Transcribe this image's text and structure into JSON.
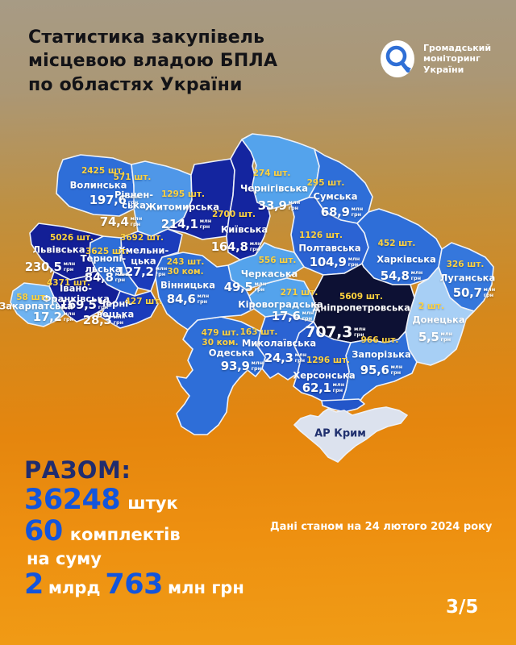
{
  "header": {
    "title_lines": [
      "Статистика закупівель",
      "місцевою владою БПЛА",
      "по областях України"
    ],
    "logo_lines": [
      "Громадський",
      "моніторинг",
      "України"
    ],
    "logo_icon": "magnifier-icon",
    "logo_accent": "#2f6fd6"
  },
  "map": {
    "unit": "млн\nгрн",
    "crimea_label": "АР Крим",
    "crimea_color": "#dce2ee",
    "regions": [
      {
        "id": "volynska",
        "name": "Волинська",
        "count": "2425 шт.",
        "amount": "197,6",
        "units": 2425,
        "mln_uah": 197.6,
        "color": "#2e6ed8",
        "pos": {
          "count": [
            128,
            212
          ],
          "name": [
            122,
            230
          ],
          "amount": [
            142,
            248
          ]
        }
      },
      {
        "id": "rivnenska",
        "name": "Рівнен-\nська",
        "count": "571 шт.",
        "amount": "74,4",
        "units": 571,
        "mln_uah": 74.4,
        "color": "#4f97e8",
        "pos": {
          "count": [
            164,
            220
          ],
          "name": [
            166,
            248
          ],
          "amount": [
            150,
            275
          ]
        }
      },
      {
        "id": "zhytomyrska",
        "name": "Житомирська",
        "count": "1295 шт.",
        "amount": "214,1",
        "units": 1295,
        "mln_uah": 214.1,
        "color": "#14259f",
        "pos": {
          "count": [
            227,
            241
          ],
          "name": [
            226,
            257
          ],
          "amount": [
            231,
            278
          ]
        }
      },
      {
        "id": "kyivska",
        "name": "Київська",
        "count": "2700 шт.",
        "amount": "164,8",
        "units": 2700,
        "mln_uah": 164.8,
        "color": "#14259f",
        "pos": {
          "count": [
            290,
            266
          ],
          "name": [
            303,
            285
          ],
          "amount": [
            293,
            306
          ]
        }
      },
      {
        "id": "chernihivska",
        "name": "Чернігівська",
        "count": "274 шт.",
        "amount": "33,9",
        "units": 274,
        "mln_uah": 33.9,
        "color": "#54a3ec",
        "pos": {
          "count": [
            337,
            215
          ],
          "name": [
            340,
            234
          ],
          "amount": [
            346,
            255
          ]
        }
      },
      {
        "id": "sumska",
        "name": "Сумська",
        "count": "295 шт.",
        "amount": "68,9",
        "units": 295,
        "mln_uah": 68.9,
        "color": "#2e6ed8",
        "pos": {
          "count": [
            404,
            227
          ],
          "name": [
            416,
            244
          ],
          "amount": [
            424,
            263
          ]
        }
      },
      {
        "id": "poltavska",
        "name": "Полтавська",
        "count": "1126 шт.",
        "amount": "104,9",
        "units": 1126,
        "mln_uah": 104.9,
        "color": "#2b63d3",
        "pos": {
          "count": [
            398,
            292
          ],
          "name": [
            409,
            308
          ],
          "amount": [
            415,
            325
          ]
        }
      },
      {
        "id": "kharkivska",
        "name": "Харківська",
        "count": "452 шт.",
        "amount": "54,8",
        "units": 452,
        "mln_uah": 54.8,
        "color": "#2e6ed8",
        "pos": {
          "count": [
            492,
            302
          ],
          "name": [
            504,
            322
          ],
          "amount": [
            498,
            342
          ]
        }
      },
      {
        "id": "luhanska",
        "name": "Луганська",
        "count": "326 шт.",
        "amount": "50,7",
        "units": 326,
        "mln_uah": 50.7,
        "color": "#3577dc",
        "pos": {
          "count": [
            577,
            328
          ],
          "name": [
            580,
            345
          ],
          "amount": [
            588,
            363
          ]
        }
      },
      {
        "id": "donetska",
        "name": "Донецька",
        "count": "2 шт.",
        "amount": "5,5",
        "units": 2,
        "mln_uah": 5.5,
        "color": "#a7cff5",
        "pos": {
          "count": [
            535,
            380
          ],
          "name": [
            544,
            397
          ],
          "amount": [
            540,
            418
          ]
        }
      },
      {
        "id": "dnipropetrovska",
        "name": "Дніпропетровська",
        "count": "5609 шт.",
        "amount": "707,3",
        "units": 5609,
        "mln_uah": 707.3,
        "color": "#0d1134",
        "big": true,
        "pos": {
          "count": [
            448,
            368
          ],
          "name": [
            448,
            382
          ],
          "amount": [
            416,
            412
          ]
        }
      },
      {
        "id": "zaporizka",
        "name": "Запорізька",
        "count": "966 шт.",
        "amount": "95,6",
        "units": 966,
        "mln_uah": 95.6,
        "color": "#2e6ed8",
        "pos": {
          "count": [
            471,
            422
          ],
          "name": [
            473,
            440
          ],
          "amount": [
            473,
            459
          ]
        }
      },
      {
        "id": "khersonska",
        "name": "Херсонська",
        "count": "1296 шт.",
        "amount": "62,1",
        "units": 1296,
        "mln_uah": 62.1,
        "color": "#2356c9",
        "pos": {
          "count": [
            407,
            447
          ],
          "name": [
            402,
            466
          ],
          "amount": [
            401,
            481
          ]
        }
      },
      {
        "id": "mykolaivska",
        "name": "Миколаївська",
        "count": "163 шт.",
        "amount": "24,3",
        "units": 163,
        "mln_uah": 24.3,
        "color": "#2b63d3",
        "pos": {
          "count": [
            321,
            412
          ],
          "name": [
            346,
            426
          ],
          "amount": [
            354,
            444
          ]
        }
      },
      {
        "id": "odeska",
        "name": "Одеська",
        "count": "479 шт.",
        "count2": "30 ком.",
        "kits": 30,
        "amount": "93,9",
        "units": 479,
        "mln_uah": 93.9,
        "color": "#2e6ed8",
        "pos": {
          "count": [
            273,
            419
          ],
          "name": [
            287,
            438
          ],
          "amount": [
            300,
            454
          ]
        }
      },
      {
        "id": "kirovohradska",
        "name": "Кіровоградська",
        "count": "271 шт.",
        "amount": "17,6",
        "units": 271,
        "mln_uah": 17.6,
        "color": "#54a3ec",
        "pos": {
          "count": [
            371,
            363
          ],
          "name": [
            348,
            378
          ],
          "amount": [
            363,
            392
          ]
        }
      },
      {
        "id": "cherkaska",
        "name": "Черкаська",
        "count": "556 шт.",
        "amount": "49,5",
        "units": 556,
        "mln_uah": 49.5,
        "color": "#54a3ec",
        "pos": {
          "count": [
            344,
            323
          ],
          "name": [
            334,
            340
          ],
          "amount": [
            304,
            356
          ]
        }
      },
      {
        "id": "vinnytska",
        "name": "Вінницька",
        "count": "243 шт.",
        "count2": "30 ком.",
        "kits": 30,
        "amount": "84,6",
        "units": 243,
        "mln_uah": 84.6,
        "color": "#2e6ed8",
        "pos": {
          "count": [
            230,
            331
          ],
          "name": [
            233,
            354
          ],
          "amount": [
            233,
            371
          ]
        }
      },
      {
        "id": "khmelnytska",
        "name": "Хмельни-\nцька",
        "count": "3692 шт.",
        "amount": "127,2",
        "units": 3692,
        "mln_uah": 127.2,
        "color": "#1b3cbb",
        "pos": {
          "count": [
            176,
            295
          ],
          "name": [
            178,
            317
          ],
          "amount": [
            176,
            337
          ]
        }
      },
      {
        "id": "ternopilska",
        "name": "Тернопі-\nльська",
        "count": "3625 шт.",
        "amount": "84,8",
        "units": 3625,
        "mln_uah": 84.8,
        "color": "#2e6ed8",
        "pos": {
          "count": [
            133,
            312
          ],
          "name": [
            128,
            327
          ],
          "amount": [
            131,
            344
          ]
        }
      },
      {
        "id": "lvivska",
        "name": "Львівська",
        "count": "5026 шт.",
        "amount": "230,5",
        "units": 5026,
        "mln_uah": 230.5,
        "color": "#131f96",
        "pos": {
          "count": [
            89,
            295
          ],
          "name": [
            73,
            310
          ],
          "amount": [
            62,
            331
          ]
        }
      },
      {
        "id": "ivano-frankivska",
        "name": "Івано-\nФранківська",
        "count": "4371 шт.",
        "amount": "169,5",
        "units": 4371,
        "mln_uah": 169.5,
        "color": "#131f96",
        "pos": {
          "count": [
            85,
            351
          ],
          "name": [
            94,
            364
          ],
          "amount": [
            105,
            378
          ]
        }
      },
      {
        "id": "zakarpatska",
        "name": "Закарпатська",
        "count": "58 шт.",
        "amount": "17,2",
        "units": 58,
        "mln_uah": 17.2,
        "color": "#6fb3f0",
        "pos": {
          "count": [
            40,
            369
          ],
          "name": [
            45,
            380
          ],
          "amount": [
            67,
            393
          ]
        }
      },
      {
        "id": "chernivetska",
        "name": "Черні-\nвецька",
        "count": "427 шт.",
        "amount": "28,3",
        "units": 427,
        "mln_uah": 28.3,
        "color": "#1b3cbb",
        "pos": {
          "count": [
            178,
            374
          ],
          "name": [
            143,
            383
          ],
          "amount": [
            129,
            397
          ]
        }
      }
    ]
  },
  "summary": {
    "total_label": "РАЗОМ:",
    "units_value": "36248",
    "units_label": "штук",
    "kits_value": "60",
    "kits_label": "комплектів",
    "sum_prefix": "на суму",
    "sum_value1": "2",
    "sum_label1": "млрд",
    "sum_value2": "763",
    "sum_label2": "млн грн",
    "accent_blue": "#1355dc",
    "accent_navy": "#202c6e"
  },
  "footer": {
    "date_note": "Дані станом на 24 лютого 2024 року",
    "page": "3/5"
  }
}
